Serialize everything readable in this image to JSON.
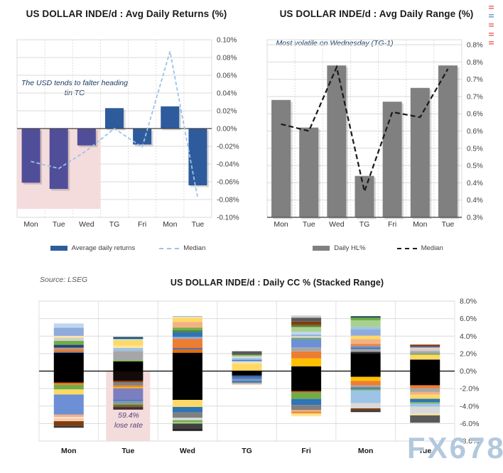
{
  "page": {
    "source_note": "Source: LSEG",
    "watermark": "FX678"
  },
  "decoration": {
    "edge_marks": [
      "#E86A6A",
      "#6B9BD2",
      "#E86A6A",
      "#E86A6A",
      "#E86A6A"
    ]
  },
  "chart_data": [
    {
      "type": "bar",
      "title": "US DOLLAR INDE/d : Avg Daily Returns (%)",
      "annotation": "The USD tends to falter heading tin TG",
      "categories": [
        "Mon",
        "Tue",
        "Wed",
        "TG",
        "Fri",
        "Mon",
        "Tue"
      ],
      "ylim": [
        -0.1,
        0.1
      ],
      "ytick_step": 0.02,
      "ytick_labels": [
        "0.10%",
        "0.08%",
        "0.06%",
        "0.04%",
        "0.02%",
        "0.00%",
        "-0.02%",
        "-0.04%",
        "-0.06%",
        "-0.08%",
        "-0.10%"
      ],
      "grid": true,
      "legend_position": "bottom",
      "series": [
        {
          "name": "Average daily returns",
          "type": "bar",
          "color": "#2E5B9C",
          "values": [
            -0.061,
            -0.068,
            -0.019,
            0.023,
            -0.018,
            0.025,
            -0.064
          ]
        },
        {
          "name": "Median",
          "type": "line",
          "style": "dashed",
          "color": "#9DC3E6",
          "values": [
            -0.037,
            -0.045,
            -0.025,
            0.0,
            -0.021,
            0.087,
            -0.079
          ]
        }
      ],
      "highlight": {
        "from_category_index": 0,
        "to_category_index": 2,
        "color": "#F5DCDC",
        "tinted_bar_color": "#514E99"
      }
    },
    {
      "type": "bar",
      "title": "US DOLLAR INDE/d : Avg Daily Range (%)",
      "annotation": "Most volatile on Wednesday (TG-1)",
      "categories": [
        "Mon",
        "Tue",
        "Wed",
        "TG",
        "Fri",
        "Mon",
        "Tue"
      ],
      "ylim": [
        0.3,
        0.8
      ],
      "ytick_step": 0.05,
      "ytick_labels": [
        "0.8%",
        "0.8%",
        "0.7%",
        "0.7%",
        "0.6%",
        "0.6%",
        "0.5%",
        "0.5%",
        "0.4%",
        "0.4%",
        "0.3%"
      ],
      "grid": true,
      "legend_position": "bottom",
      "series": [
        {
          "name": "Daily HL%",
          "type": "bar",
          "color": "#808080",
          "values": [
            0.64,
            0.56,
            0.74,
            0.42,
            0.635,
            0.675,
            0.74
          ]
        },
        {
          "name": "Median",
          "type": "line",
          "style": "dashed",
          "color": "#1A1A1A",
          "values": [
            0.57,
            0.55,
            0.735,
            0.375,
            0.605,
            0.59,
            0.73
          ]
        }
      ]
    },
    {
      "type": "stacked_bar",
      "title": "US DOLLAR INDE/d : Daily CC % (Stacked Range)",
      "annotation": "59.4%\nlose rate",
      "categories": [
        "Mon",
        "Tue",
        "Wed",
        "TG",
        "Fri",
        "Mon",
        "Tue"
      ],
      "ylim": [
        -8,
        8
      ],
      "ytick_step": 2,
      "ytick_labels": [
        "8.0%",
        "6.0%",
        "4.0%",
        "2.0%",
        "0.0%",
        "-2.0%",
        "-4.0%",
        "-6.0%",
        "-8.0%"
      ],
      "grid": true,
      "highlight": {
        "category_index": 1,
        "color": "#F5DCDC"
      },
      "bars": [
        {
          "pos": [
            [
              "#000000",
              2.1
            ],
            [
              "#4472C4",
              0.12
            ],
            [
              "#ED7D31",
              0.3
            ],
            [
              "#A6A6A6",
              0.15
            ],
            [
              "#264478",
              0.33
            ],
            [
              "#70AD47",
              0.45
            ],
            [
              "#D0CECE",
              0.38
            ],
            [
              "#FFE699",
              0.2
            ],
            [
              "#8FAADC",
              0.92
            ],
            [
              "#BDD7EE",
              0.5
            ]
          ],
          "neg": [
            [
              "#000000",
              1.3
            ],
            [
              "#C55A11",
              0.14
            ],
            [
              "#ED7D31",
              0.14
            ],
            [
              "#70AD47",
              0.52
            ],
            [
              "#FFD966",
              0.58
            ],
            [
              "#6D8FD6",
              2.3
            ],
            [
              "#F4B183",
              0.28
            ],
            [
              "#FBE5D6",
              0.12
            ],
            [
              "#F8CBAD",
              0.35
            ],
            [
              "#843C0C",
              0.5
            ],
            [
              "#3B3838",
              0.25
            ]
          ]
        },
        {
          "pos": [
            [
              "#000000",
              1.1
            ],
            [
              "#70AD47",
              0.14
            ],
            [
              "#A6A6A6",
              1.05
            ],
            [
              "#9DC3E6",
              0.35
            ],
            [
              "#FFE699",
              0.28
            ],
            [
              "#FFD966",
              0.6
            ],
            [
              "#BDD7EE",
              0.16
            ],
            [
              "#1F4E5F",
              0.22
            ]
          ],
          "neg": [
            [
              "#140A0A",
              1.1
            ],
            [
              "#843C0C",
              0.16
            ],
            [
              "#7F7F7F",
              0.38
            ],
            [
              "#ED7D31",
              0.18
            ],
            [
              "#FFC000",
              0.14
            ],
            [
              "#7B7FC0",
              1.3
            ],
            [
              "#4472C4",
              0.16
            ],
            [
              "#8497B0",
              0.3
            ],
            [
              "#70AD47",
              0.14
            ],
            [
              "#845C3C",
              0.25
            ],
            [
              "#3B3030",
              0.3
            ]
          ]
        },
        {
          "pos": [
            [
              "#000000",
              2.1
            ],
            [
              "#E36C09",
              0.38
            ],
            [
              "#4472C4",
              0.16
            ],
            [
              "#ED7D31",
              1.05
            ],
            [
              "#8FAADC",
              0.22
            ],
            [
              "#2E75B6",
              0.55
            ],
            [
              "#548235",
              0.22
            ],
            [
              "#70AD47",
              0.3
            ],
            [
              "#F4B183",
              0.65
            ],
            [
              "#FFD966",
              0.45
            ],
            [
              "#FFE699",
              0.12
            ],
            [
              "#8FAADC",
              0.08
            ]
          ],
          "neg": [
            [
              "#000000",
              3.3
            ],
            [
              "#FFD966",
              0.8
            ],
            [
              "#2E75B6",
              0.62
            ],
            [
              "#808080",
              0.62
            ],
            [
              "#D9D9D9",
              0.28
            ],
            [
              "#70AD47",
              0.22
            ],
            [
              "#A9D18E",
              0.16
            ],
            [
              "#404040",
              0.55
            ],
            [
              "#262626",
              0.3
            ]
          ]
        },
        {
          "pos": [
            [
              "#FFD966",
              0.85
            ],
            [
              "#FFE699",
              0.16
            ],
            [
              "#BDD7EE",
              0.14
            ],
            [
              "#4472C4",
              0.14
            ],
            [
              "#9DC3E6",
              0.2
            ],
            [
              "#D9D9D9",
              0.16
            ],
            [
              "#A9D18E",
              0.12
            ],
            [
              "#70AD47",
              0.1
            ],
            [
              "#595959",
              0.4
            ]
          ],
          "neg": [
            [
              "#000000",
              0.5
            ],
            [
              "#264478",
              0.12
            ],
            [
              "#4472C4",
              0.28
            ],
            [
              "#8497B0",
              0.22
            ],
            [
              "#2E75B6",
              0.18
            ],
            [
              "#A6A6A6",
              0.15
            ],
            [
              "#F8CBAD",
              0.12
            ]
          ]
        },
        {
          "pos": [
            [
              "#000000",
              0.55
            ],
            [
              "#FFC000",
              0.9
            ],
            [
              "#ED7D31",
              0.8
            ],
            [
              "#A6A6A6",
              0.45
            ],
            [
              "#6D8FD6",
              0.95
            ],
            [
              "#70AD47",
              0.16
            ],
            [
              "#D9D9D9",
              0.2
            ],
            [
              "#8FAADC",
              0.16
            ],
            [
              "#BDD7EE",
              0.32
            ],
            [
              "#A9D18E",
              0.55
            ],
            [
              "#548235",
              0.22
            ],
            [
              "#843C0C",
              0.4
            ],
            [
              "#595959",
              0.45
            ],
            [
              "#D0CECE",
              0.25
            ]
          ],
          "neg": [
            [
              "#000000",
              2.3
            ],
            [
              "#C55A11",
              0.16
            ],
            [
              "#70AD47",
              0.72
            ],
            [
              "#2E75B6",
              0.7
            ],
            [
              "#808080",
              0.58
            ],
            [
              "#F4B183",
              0.18
            ],
            [
              "#ED7D31",
              0.18
            ],
            [
              "#FFD966",
              0.15
            ],
            [
              "#FFE699",
              0.2
            ]
          ]
        },
        {
          "pos": [
            [
              "#000000",
              2.05
            ],
            [
              "#262626",
              0.15
            ],
            [
              "#A6A6A6",
              0.32
            ],
            [
              "#4472C4",
              0.16
            ],
            [
              "#8497B0",
              0.22
            ],
            [
              "#ED7D31",
              0.2
            ],
            [
              "#F4B183",
              0.55
            ],
            [
              "#FFD966",
              0.4
            ],
            [
              "#8FAADC",
              0.7
            ],
            [
              "#9DC3E6",
              0.3
            ],
            [
              "#A9D18E",
              0.75
            ],
            [
              "#70AD47",
              0.3
            ],
            [
              "#1F4E5F",
              0.18
            ]
          ],
          "neg": [
            [
              "#000000",
              0.65
            ],
            [
              "#FFC000",
              0.48
            ],
            [
              "#ED7D31",
              0.52
            ],
            [
              "#A6A6A6",
              0.22
            ],
            [
              "#4472C4",
              0.18
            ],
            [
              "#70AD47",
              0.16
            ],
            [
              "#9DC3E6",
              1.45
            ],
            [
              "#D9D9D9",
              0.6
            ],
            [
              "#843C0C",
              0.18
            ],
            [
              "#3B3838",
              0.25
            ]
          ]
        },
        {
          "pos": [
            [
              "#000000",
              1.32
            ],
            [
              "#FFD966",
              0.55
            ],
            [
              "#70AD47",
              0.12
            ],
            [
              "#A6A6A6",
              0.3
            ],
            [
              "#D0CECE",
              0.28
            ],
            [
              "#F8CBAD",
              0.12
            ],
            [
              "#4472C4",
              0.12
            ],
            [
              "#843C0C",
              0.22
            ]
          ],
          "neg": [
            [
              "#000000",
              1.62
            ],
            [
              "#ED7D31",
              0.35
            ],
            [
              "#A6A6A6",
              0.42
            ],
            [
              "#F4B183",
              0.3
            ],
            [
              "#FFD966",
              0.48
            ],
            [
              "#2E75B6",
              0.38
            ],
            [
              "#70AD47",
              0.14
            ],
            [
              "#9DC3E6",
              0.38
            ],
            [
              "#D9D9D9",
              0.82
            ],
            [
              "#FFE699",
              0.17
            ],
            [
              "#595959",
              0.85
            ]
          ]
        }
      ]
    }
  ]
}
